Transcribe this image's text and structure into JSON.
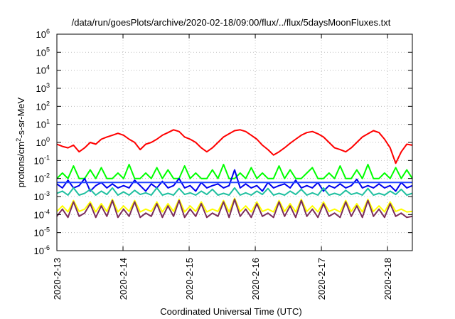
{
  "chart_data": {
    "type": "line",
    "title": "/data/run/goesPlots/archive/2020-02-18/09:00/flux/../flux/5daysMoonFluxes.txt",
    "xlabel": "Coordinated Universal Time (UTC)",
    "ylabel_main": "protons/cm",
    "ylabel_sup": "2",
    "ylabel_rest": "-s-sr-MeV",
    "y_scale": "log",
    "ylim": [
      1e-06,
      1000000.0
    ],
    "y_tick_exponents": [
      -6,
      -5,
      -4,
      -3,
      -2,
      -1,
      0,
      1,
      2,
      3,
      4,
      5,
      6
    ],
    "y_tick_base": "10",
    "x_range_days": [
      "2020-02-13 00:00",
      "2020-02-18 09:00"
    ],
    "x_tick_labels": [
      "2020-2-13",
      "2020-2-14",
      "2020-2-15",
      "2020-2-16",
      "2020-2-17",
      "2020-2-18"
    ],
    "grid": true,
    "legend": "none",
    "series": [
      {
        "color": "#ff0000",
        "values": [
          0.8,
          0.6,
          0.5,
          0.7,
          0.3,
          0.5,
          1.0,
          0.8,
          1.5,
          2.0,
          2.5,
          3.2,
          2.5,
          1.5,
          1.0,
          0.4,
          0.8,
          1.0,
          1.5,
          2.5,
          3.5,
          5.0,
          4.0,
          2.0,
          1.5,
          1.0,
          0.5,
          0.3,
          0.5,
          1.0,
          2.0,
          3.0,
          4.5,
          5.0,
          4.0,
          2.5,
          1.5,
          0.7,
          0.4,
          0.2,
          0.3,
          0.5,
          0.9,
          1.5,
          2.5,
          3.5,
          4.0,
          3.0,
          2.0,
          1.0,
          0.5,
          0.4,
          0.3,
          0.5,
          1.0,
          2.0,
          3.0,
          4.5,
          3.5,
          1.5,
          0.5,
          0.07,
          0.3,
          0.8,
          0.7
        ]
      },
      {
        "color": "#00ff00",
        "values": [
          0.01,
          0.02,
          0.01,
          0.05,
          0.01,
          0.01,
          0.03,
          0.01,
          0.04,
          0.01,
          0.01,
          0.02,
          0.01,
          0.06,
          0.01,
          0.01,
          0.02,
          0.01,
          0.04,
          0.01,
          0.03,
          0.01,
          0.01,
          0.05,
          0.01,
          0.02,
          0.01,
          0.01,
          0.03,
          0.01,
          0.06,
          0.01,
          0.01,
          0.02,
          0.01,
          0.04,
          0.01,
          0.02,
          0.01,
          0.01,
          0.05,
          0.01,
          0.03,
          0.01,
          0.01,
          0.02,
          0.04,
          0.01,
          0.01,
          0.02,
          0.01,
          0.05,
          0.01,
          0.01,
          0.03,
          0.01,
          0.06,
          0.01,
          0.01,
          0.02,
          0.01,
          0.04,
          0.01,
          0.03,
          0.01
        ]
      },
      {
        "color": "#0000ee",
        "values": [
          0.005,
          0.003,
          0.008,
          0.003,
          0.004,
          0.01,
          0.002,
          0.004,
          0.006,
          0.003,
          0.005,
          0.003,
          0.004,
          0.003,
          0.008,
          0.004,
          0.002,
          0.005,
          0.003,
          0.007,
          0.003,
          0.004,
          0.01,
          0.003,
          0.004,
          0.002,
          0.006,
          0.003,
          0.004,
          0.005,
          0.003,
          0.004,
          0.03,
          0.003,
          0.005,
          0.003,
          0.004,
          0.002,
          0.006,
          0.003,
          0.004,
          0.005,
          0.003,
          0.008,
          0.003,
          0.004,
          0.003,
          0.006,
          0.002,
          0.004,
          0.003,
          0.005,
          0.003,
          0.004,
          0.009,
          0.003,
          0.004,
          0.003,
          0.005,
          0.003,
          0.004,
          0.002,
          0.006,
          0.003,
          0.004
        ]
      },
      {
        "color": "#2244ff",
        "values": [
          0.006,
          0.006,
          0.006,
          0.006,
          0.006,
          0.006,
          0.006,
          0.006,
          0.006,
          0.006,
          0.006,
          0.006,
          0.006,
          0.006,
          0.006,
          0.006,
          0.006,
          0.006,
          0.006,
          0.006,
          0.006,
          0.006,
          0.006,
          0.006,
          0.006,
          0.006,
          0.006,
          0.006,
          0.006,
          0.006,
          0.006,
          0.006,
          0.006,
          0.006,
          0.006,
          0.006,
          0.006,
          0.006,
          0.006,
          0.006,
          0.006,
          0.006,
          0.006,
          0.006,
          0.006,
          0.006,
          0.006,
          0.006,
          0.006,
          0.006,
          0.006,
          0.006,
          0.006,
          0.006,
          0.006,
          0.006,
          0.006,
          0.006,
          0.006,
          0.006,
          0.006,
          0.006,
          0.006,
          0.006,
          0.006
        ]
      },
      {
        "color": "#20c0a0",
        "values": [
          0.0015,
          0.002,
          0.0012,
          0.003,
          0.0012,
          0.0015,
          0.0025,
          0.0012,
          0.002,
          0.0013,
          0.003,
          0.0012,
          0.0018,
          0.0012,
          0.0022,
          0.0013,
          0.0016,
          0.0012,
          0.003,
          0.0012,
          0.0015,
          0.0012,
          0.0028,
          0.0013,
          0.0016,
          0.0012,
          0.002,
          0.0013,
          0.0025,
          0.0012,
          0.0015,
          0.0012,
          0.003,
          0.0012,
          0.0016,
          0.0012,
          0.002,
          0.0013,
          0.0028,
          0.0012,
          0.0015,
          0.0012,
          0.002,
          0.0013,
          0.0025,
          0.0012,
          0.0016,
          0.0012,
          0.003,
          0.0012,
          0.0015,
          0.0012,
          0.0022,
          0.0013,
          0.0016,
          0.0012,
          0.0028,
          0.0012,
          0.0015,
          0.0012,
          0.002,
          0.0013,
          0.0025,
          0.0012,
          0.0015
        ]
      },
      {
        "color": "#ffff00",
        "values": [
          0.00015,
          0.0003,
          0.00014,
          0.0006,
          0.00015,
          0.0002,
          0.0005,
          0.00014,
          0.0004,
          0.00015,
          0.0007,
          0.00014,
          0.0003,
          0.00015,
          0.0006,
          0.00014,
          0.0002,
          0.00015,
          0.0005,
          0.00014,
          0.0004,
          0.00015,
          0.0007,
          0.00014,
          0.0003,
          0.00015,
          0.0005,
          0.00014,
          0.0002,
          0.00015,
          0.0006,
          0.00014,
          0.0008,
          0.00015,
          0.0003,
          0.00014,
          0.0005,
          0.00015,
          0.0002,
          0.00014,
          0.0006,
          0.00015,
          0.0004,
          0.00014,
          0.0007,
          0.00015,
          0.0003,
          0.00014,
          0.0005,
          0.00015,
          0.0002,
          0.00014,
          0.0006,
          0.00015,
          0.0004,
          0.00014,
          0.0007,
          0.00015,
          0.0003,
          0.00014,
          0.0005,
          0.00015,
          0.0002,
          0.00014,
          0.00015
        ]
      },
      {
        "color": "#7b2d5b",
        "values": [
          8e-05,
          0.0002,
          7e-05,
          0.0005,
          8e-05,
          0.00012,
          0.0004,
          7e-05,
          0.0003,
          8e-05,
          0.0006,
          7e-05,
          0.0002,
          8e-05,
          0.0005,
          7e-05,
          0.00012,
          8e-05,
          0.0004,
          7e-05,
          0.0003,
          8e-05,
          0.0006,
          7e-05,
          0.0002,
          8e-05,
          0.0004,
          7e-05,
          0.00012,
          8e-05,
          0.0005,
          7e-05,
          0.0007,
          8e-05,
          0.0002,
          7e-05,
          0.0004,
          8e-05,
          0.00012,
          7e-05,
          0.0005,
          8e-05,
          0.0003,
          7e-05,
          0.0006,
          8e-05,
          0.0002,
          7e-05,
          0.0004,
          8e-05,
          0.00012,
          7e-05,
          0.0005,
          8e-05,
          0.0003,
          7e-05,
          0.0006,
          8e-05,
          0.0002,
          7e-05,
          0.0004,
          8e-05,
          0.00012,
          7e-05,
          8e-05
        ]
      }
    ]
  }
}
